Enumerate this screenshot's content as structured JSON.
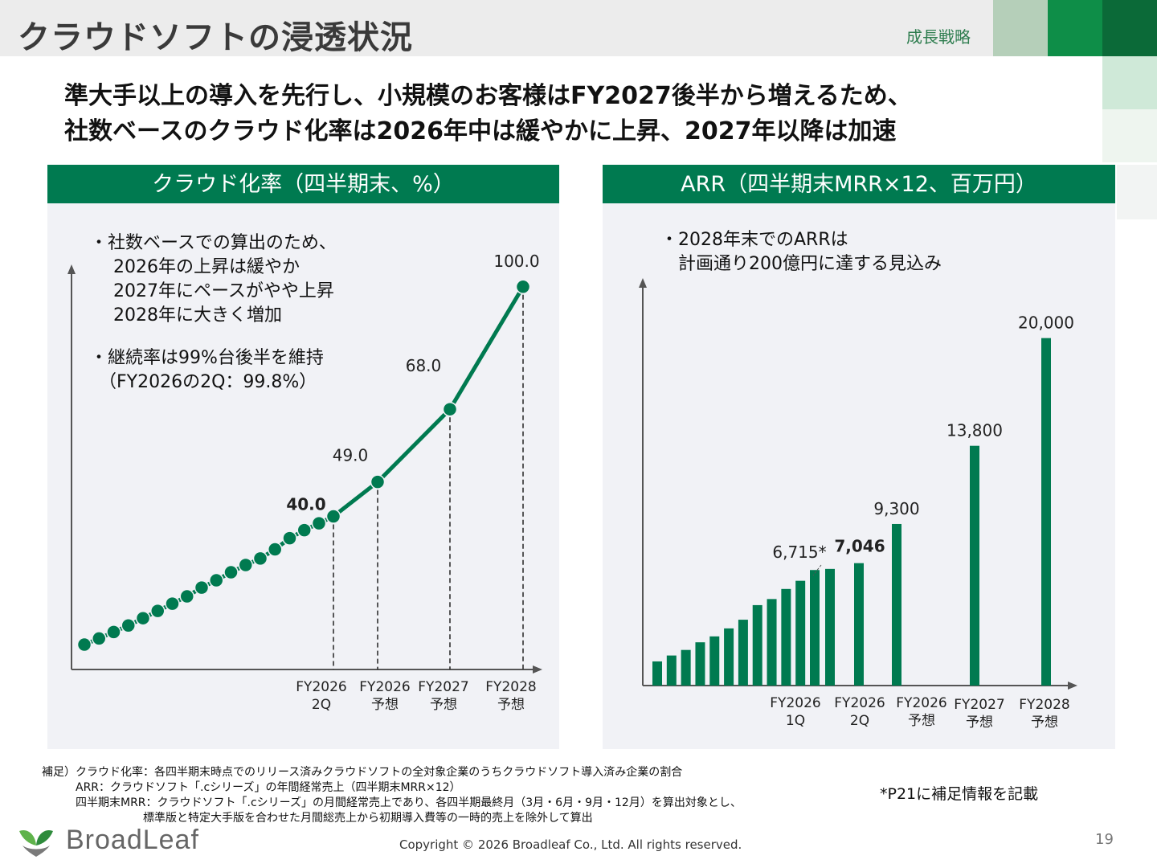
{
  "header": {
    "title": "クラウドソフトの浸透状況",
    "section_label": "成長戦略",
    "accent_colors": [
      "#b5cfb9",
      "#0e8e48",
      "#0b6a38",
      "#cfe9d8"
    ]
  },
  "headline": {
    "line1": "準大手以上の導入を先行し、小規模のお客様はFY2027後半から増えるため、",
    "line2": "社数ベースのクラウド化率は2026年中は緩やかに上昇、2027年以降は加速"
  },
  "left_panel": {
    "header": "クラウド化率（四半期末、%）",
    "note1": "・社数ベースでの算出のため、\n　 2026年の上昇は緩やか\n　 2027年にペースがやや上昇\n　 2028年に大きく増加",
    "note2": "・継続率は99%台後半を維持\n　（FY2026の2Q：99.8%）"
  },
  "right_panel": {
    "header": "ARR（四半期末MRR×12、百万円）",
    "note": "・2028年末でのARRは\n　計画通り200億円に達する見込み"
  },
  "chart_data": [
    {
      "type": "line",
      "title": "クラウド化率（四半期末、%）",
      "unlabeled_points": [
        6.5,
        8.1,
        9.8,
        11.5,
        13.4,
        15.3,
        17.2,
        19.1,
        21.4,
        23.3,
        25.4,
        27.3,
        29.0,
        31.4,
        34.3,
        36.4,
        38.2
      ],
      "labeled_points": [
        {
          "category": [
            "FY2026",
            "2Q"
          ],
          "value": 40.0,
          "label": "40.0",
          "bold": true
        },
        {
          "category": [
            "FY2026",
            "予想"
          ],
          "value": 49.0,
          "label": "49.0",
          "bold": false
        },
        {
          "category": [
            "FY2027",
            "予想"
          ],
          "value": 68.0,
          "label": "68.0",
          "bold": false
        },
        {
          "category": [
            "FY2028",
            "予想"
          ],
          "value": 100.0,
          "label": "100.0",
          "bold": false
        }
      ],
      "ylim": [
        0,
        105
      ],
      "color": "#007a50"
    },
    {
      "type": "bar",
      "title": "ARR（四半期末MRR×12、百万円）",
      "unlabeled_bars": [
        1390,
        1730,
        2050,
        2490,
        2830,
        3290,
        3790,
        4630,
        4980,
        5560,
        6030,
        6650
      ],
      "labeled_bars": [
        {
          "category": [
            "FY2026",
            "1Q"
          ],
          "value": 6715,
          "label": "6,715*",
          "bold": false
        },
        {
          "category": [
            "FY2026",
            "2Q"
          ],
          "value": 7046,
          "label": "7,046",
          "bold": true
        },
        {
          "category": [
            "FY2026",
            "予想"
          ],
          "value": 9300,
          "label": "9,300",
          "bold": false
        },
        {
          "category": [
            "FY2027",
            "予想"
          ],
          "value": 13800,
          "label": "13,800",
          "bold": false
        },
        {
          "category": [
            "FY2028",
            "予想"
          ],
          "value": 20000,
          "label": "20,000",
          "bold": false
        }
      ],
      "ylim": [
        0,
        23500
      ],
      "color": "#007a50"
    }
  ],
  "footnotes": {
    "line1": "補足）クラウド化率：各四半期末時点でのリリース済みクラウドソフトの全対象企業のうちクラウドソフト導入済み企業の割合",
    "line2": "　　　ARR：クラウドソフト「.cシリーズ」の年間経常売上（四半期末MRR×12）",
    "line3": "　　　四半期末MRR：クラウドソフト「.cシリーズ」の月間経常売上であり、各四半期最終月（3月・6月・9月・12月）を算出対象とし、",
    "line4": "　　　　　　　　　標準版と特定大手版を合わせた月間総売上から初期導入費等の一時的売上を除外して算出",
    "aside": "*P21に補足情報を記載"
  },
  "footer": {
    "logo_text": "BroadLeaf",
    "copyright": "Copyright © 2026 Broadleaf Co., Ltd. All rights reserved.",
    "page_number": "19"
  }
}
